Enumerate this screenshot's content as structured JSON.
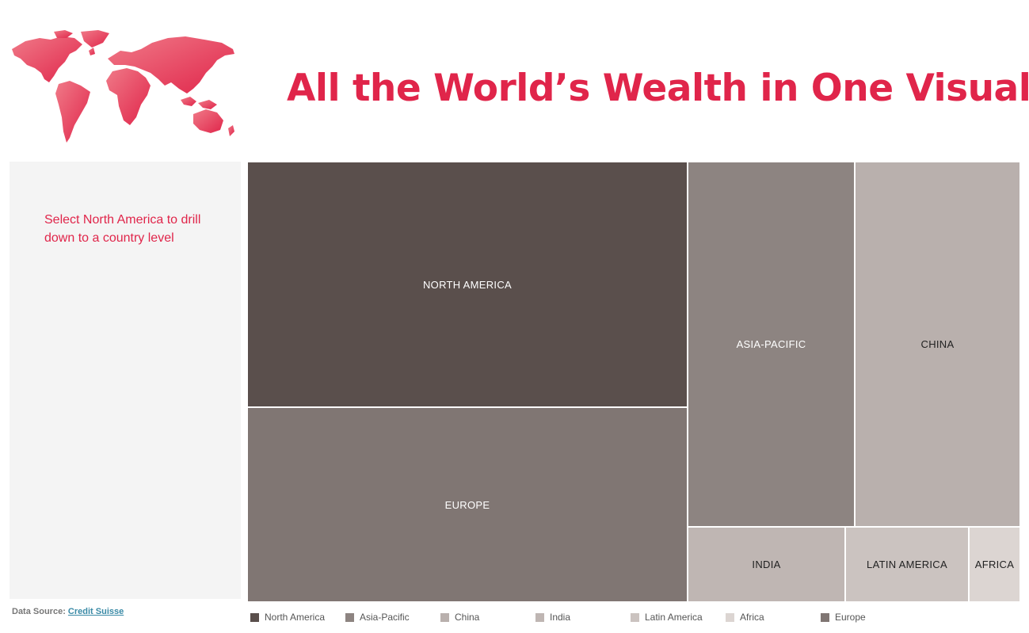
{
  "header": {
    "title": "All the World’s Wealth in One Visual",
    "title_color": "#e0254a",
    "logo_icon": "world-map-icon",
    "logo_color": "#e0254a"
  },
  "side_panel": {
    "instruction": "Select North America to drill down to a country level",
    "instruction_color": "#e0254a"
  },
  "footer": {
    "source_label": "Data Source:",
    "source_link": "Credit Suisse",
    "source_link_color": "#3a8aa6"
  },
  "chart_data": {
    "type": "treemap",
    "title": "",
    "regions": [
      {
        "name": "NORTH AMERICA",
        "color": "#5a4f4c",
        "label_color": "#ffffff"
      },
      {
        "name": "EUROPE",
        "color": "#807673",
        "label_color": "#ffffff"
      },
      {
        "name": "ASIA-PACIFIC",
        "color": "#8d8481",
        "label_color": "#ffffff"
      },
      {
        "name": "CHINA",
        "color": "#b9b0ad",
        "label_color": "#222222"
      },
      {
        "name": "INDIA",
        "color": "#bfb6b3",
        "label_color": "#222222"
      },
      {
        "name": "LATIN AMERICA",
        "color": "#cbc3c0",
        "label_color": "#222222"
      },
      {
        "name": "AFRICA",
        "color": "#dcd5d2",
        "label_color": "#222222"
      }
    ],
    "legend": [
      {
        "label": "North America",
        "color": "#5a4f4c"
      },
      {
        "label": "Asia-Pacific",
        "color": "#8d8481"
      },
      {
        "label": "China",
        "color": "#b9b0ad"
      },
      {
        "label": "India",
        "color": "#bfb6b3"
      },
      {
        "label": "Latin America",
        "color": "#cbc3c0"
      },
      {
        "label": "Africa",
        "color": "#dcd5d2"
      },
      {
        "label": "Europe",
        "color": "#807673"
      }
    ]
  }
}
